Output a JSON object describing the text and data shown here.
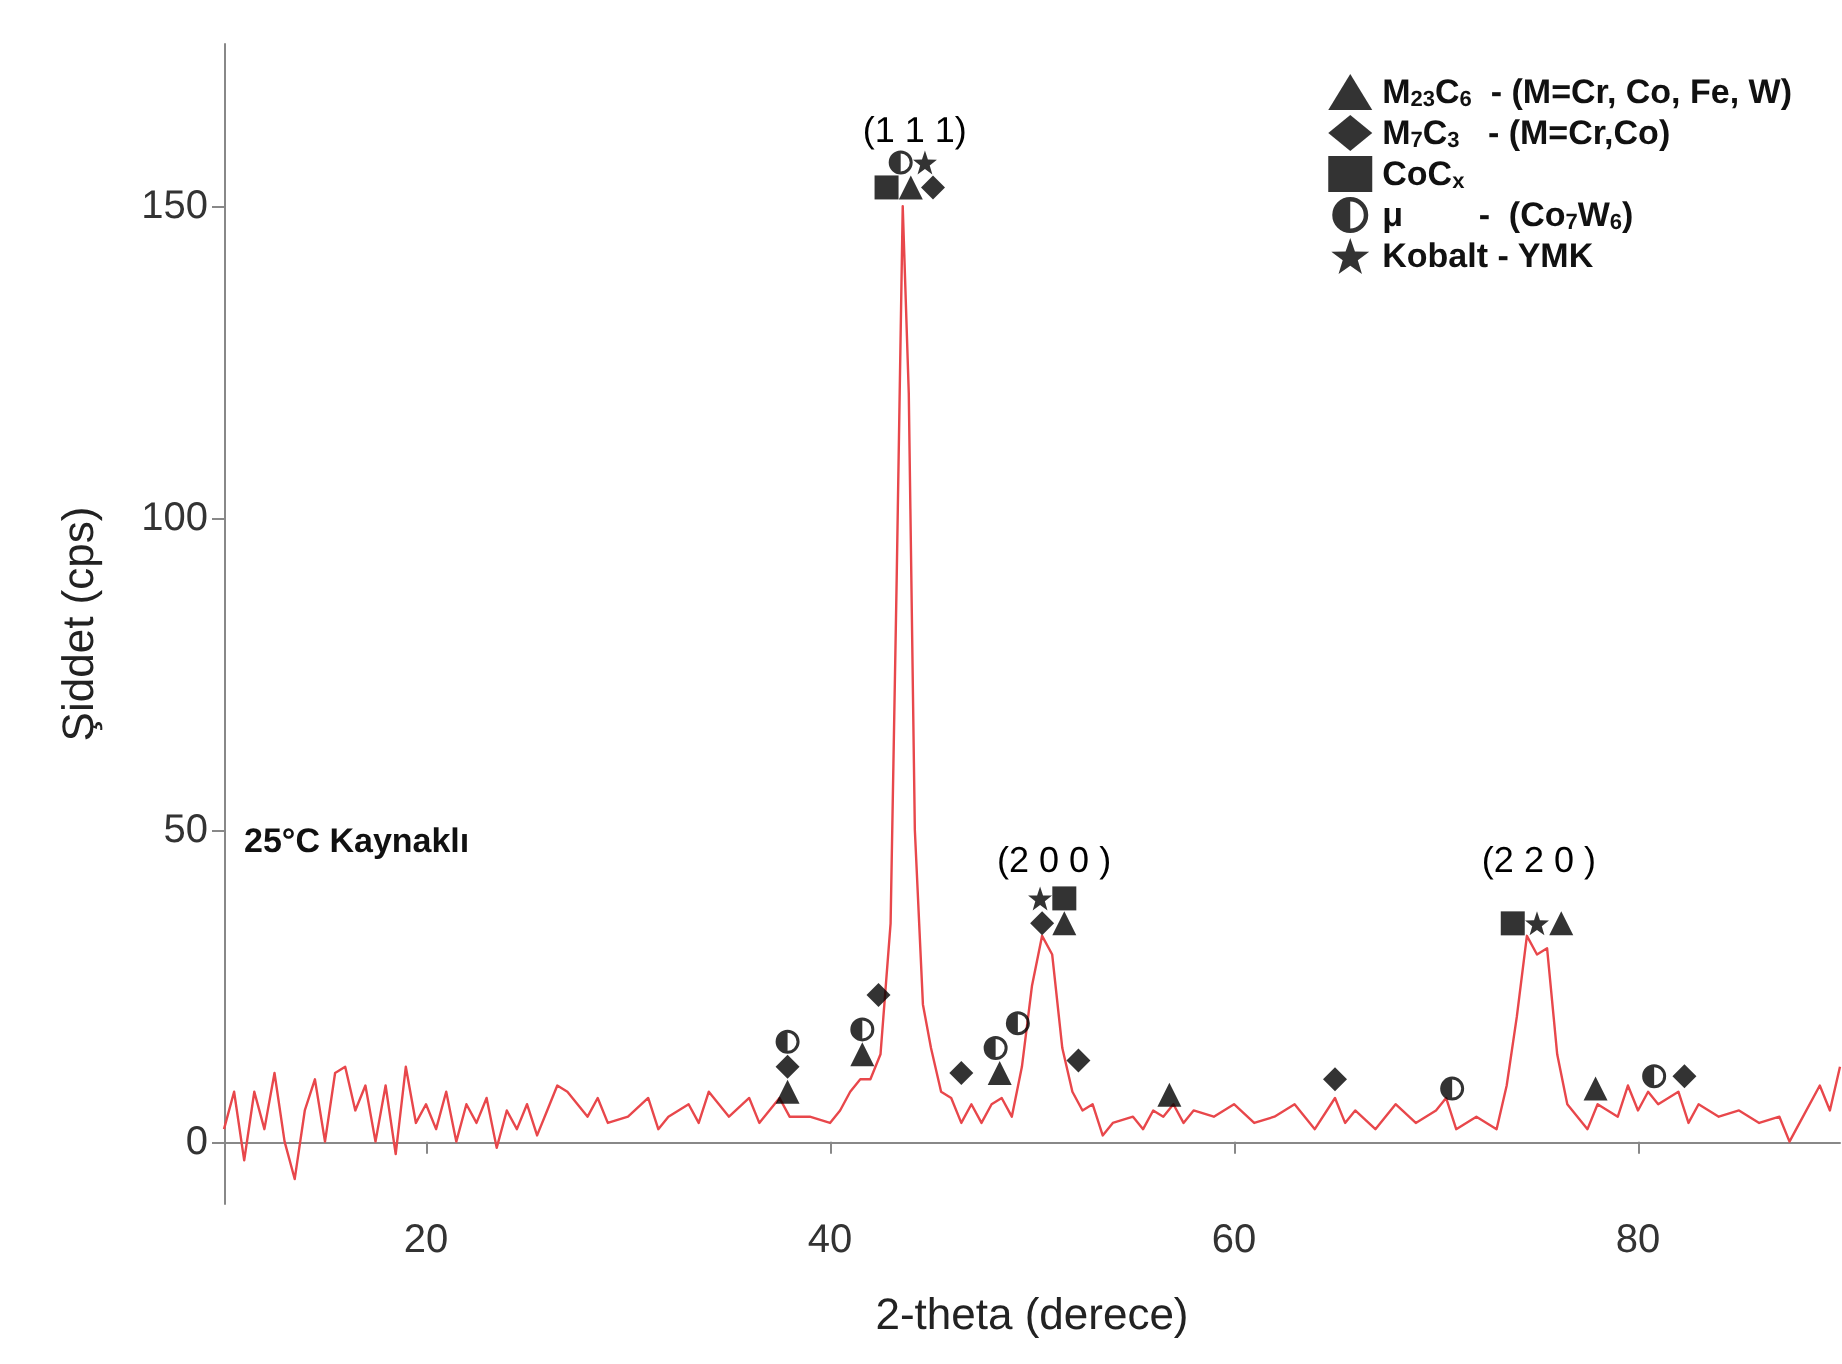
{
  "chart_data": {
    "type": "line",
    "xlabel": "2-theta (derece)",
    "ylabel": "Şiddet (cps)",
    "xlim": [
      10,
      90
    ],
    "ylim": [
      -10,
      176
    ],
    "xticks": [
      20,
      40,
      60,
      80
    ],
    "yticks": [
      0,
      50,
      100,
      150
    ],
    "grid": false,
    "legend": "top right",
    "annotations": [
      "25°C Kaynaklı",
      {
        "text": "(1 1 1)",
        "x": 43.6,
        "y": 150
      },
      {
        "text": "(2 0 0 )",
        "x": 50.5,
        "y": 33
      },
      {
        "text": "(2 2 0 )",
        "x": 74.5,
        "y": 33
      }
    ],
    "series": [
      {
        "color": "#e8474b",
        "marker": "none",
        "line_style": "solid",
        "x": [
          10,
          10.5,
          11,
          11.5,
          12,
          12.5,
          13,
          13.5,
          14,
          14.5,
          15,
          15.5,
          16,
          16.5,
          17,
          17.5,
          18,
          18.5,
          19,
          19.5,
          20,
          20.5,
          21,
          21.5,
          22,
          22.5,
          23,
          23.5,
          24,
          24.5,
          25,
          25.5,
          26,
          26.5,
          27,
          27.5,
          28,
          28.5,
          29,
          30,
          31,
          31.5,
          32,
          33,
          33.5,
          34,
          35,
          36,
          36.5,
          37,
          37.5,
          38,
          39,
          40,
          40.5,
          41,
          41.5,
          42,
          42.5,
          43,
          43.3,
          43.6,
          43.9,
          44.2,
          44.6,
          45,
          45.5,
          46,
          46.5,
          47,
          47.5,
          48,
          48.5,
          49,
          49.5,
          50,
          50.5,
          51,
          51.5,
          52,
          52.5,
          53,
          53.5,
          54,
          55,
          55.5,
          56,
          56.5,
          57,
          57.5,
          58,
          59,
          60,
          61,
          62,
          63,
          64,
          65,
          65.5,
          66,
          67,
          68,
          69,
          70,
          70.5,
          71,
          72,
          73,
          73.5,
          74,
          74.5,
          75,
          75.5,
          76,
          76.5,
          77,
          77.5,
          78,
          79,
          79.5,
          80,
          80.5,
          81,
          82,
          82.5,
          83,
          84,
          85,
          86,
          87,
          87.5,
          88,
          89,
          89.5,
          90
        ],
        "values": [
          2,
          8,
          -3,
          8,
          2,
          11,
          0,
          -6,
          5,
          10,
          0,
          11,
          12,
          5,
          9,
          0,
          9,
          -2,
          12,
          3,
          6,
          2,
          8,
          0,
          6,
          3,
          7,
          -1,
          5,
          2,
          6,
          1,
          5,
          9,
          8,
          6,
          4,
          7,
          3,
          4,
          7,
          2,
          4,
          6,
          3,
          8,
          4,
          7,
          3,
          5,
          7,
          4,
          4,
          3,
          5,
          8,
          10,
          10,
          14,
          35,
          90,
          150,
          120,
          50,
          22,
          15,
          8,
          7,
          3,
          6,
          3,
          6,
          7,
          4,
          12,
          25,
          33,
          30,
          15,
          8,
          5,
          6,
          1,
          3,
          4,
          2,
          5,
          4,
          6,
          3,
          5,
          4,
          6,
          3,
          4,
          6,
          2,
          7,
          3,
          5,
          2,
          6,
          3,
          5,
          7,
          2,
          4,
          2,
          9,
          20,
          33,
          30,
          31,
          14,
          6,
          4,
          2,
          6,
          4,
          9,
          5,
          8,
          6,
          8,
          3,
          6,
          4,
          5,
          3,
          4,
          0,
          3,
          9,
          5,
          12
        ]
      },
      {
        "type": "scatter",
        "name": "M$_{23}$C$_{6}$  - (M=Cr, Co, Fe, W)",
        "color": "#000000",
        "marker": "triangle",
        "x": [
          44.0,
          37.9,
          41.6,
          48.4,
          51.6,
          56.8,
          76.2,
          77.9
        ],
        "values": [
          153,
          8,
          14,
          11,
          35,
          7.5,
          35,
          8.5
        ]
      },
      {
        "type": "scatter",
        "name": "M$_{7}$C$_{3}$   - (M=Cr,Co)",
        "color": "#000000",
        "marker": "diamond",
        "x": [
          45.1,
          37.9,
          42.4,
          46.5,
          50.5,
          52.3,
          65.0,
          82.3
        ],
        "values": [
          153,
          12,
          23.5,
          11,
          35,
          13,
          10,
          10.5
        ]
      },
      {
        "type": "scatter",
        "name": "CoC$_{x}$",
        "color": "#000000",
        "marker": "square",
        "x": [
          42.8,
          51.6,
          73.8
        ],
        "values": [
          153,
          39,
          35
        ]
      },
      {
        "type": "scatter",
        "name": "μ        -  (Co$_{7}$W$_{6}$)",
        "color": "#000000",
        "marker": "half_circle",
        "x": [
          43.5,
          37.9,
          41.6,
          48.2,
          49.3,
          70.8,
          80.8
        ],
        "values": [
          157,
          16,
          18,
          15,
          19,
          8.5,
          10.5
        ]
      },
      {
        "type": "scatter",
        "name": "Kobalt - YMK",
        "color": "#000000",
        "marker": "star",
        "x": [
          44.7,
          50.4,
          75.0
        ],
        "values": [
          157,
          39,
          35
        ]
      }
    ]
  }
}
